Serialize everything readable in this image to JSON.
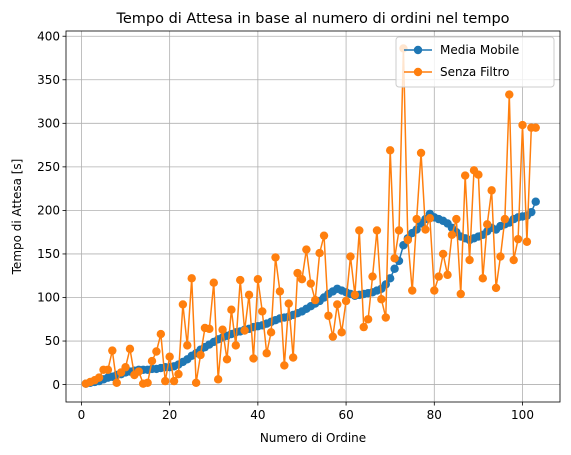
{
  "chart_data": {
    "type": "line",
    "title": "Tempo di Attesa in base al numero di ordini nel tempo",
    "xlabel": "Numero di Ordine",
    "ylabel": "Tempo di Attesa [s]",
    "xlim": [
      -3.5,
      108.5
    ],
    "ylim": [
      -20,
      406
    ],
    "x_ticks": [
      0,
      20,
      40,
      60,
      80,
      100
    ],
    "y_ticks": [
      0,
      50,
      100,
      150,
      200,
      250,
      300,
      350,
      400
    ],
    "grid": true,
    "legend_position": "top-right",
    "series": [
      {
        "name": "Media Mobile",
        "color": "#1f77b4",
        "x": [
          1,
          2,
          3,
          4,
          5,
          6,
          7,
          8,
          9,
          10,
          11,
          12,
          13,
          14,
          15,
          16,
          17,
          18,
          19,
          20,
          21,
          22,
          23,
          24,
          25,
          26,
          27,
          28,
          29,
          30,
          31,
          32,
          33,
          34,
          35,
          36,
          37,
          38,
          39,
          40,
          41,
          42,
          43,
          44,
          45,
          46,
          47,
          48,
          49,
          50,
          51,
          52,
          53,
          54,
          55,
          56,
          57,
          58,
          59,
          60,
          61,
          62,
          63,
          64,
          65,
          66,
          67,
          68,
          69,
          70,
          71,
          72,
          73,
          74,
          75,
          76,
          77,
          78,
          79,
          80,
          81,
          82,
          83,
          84,
          85,
          86,
          87,
          88,
          89,
          90,
          91,
          92,
          93,
          94,
          95,
          96,
          97,
          98,
          99,
          100,
          101,
          102,
          103
        ],
        "values": [
          1,
          2,
          3,
          4,
          6,
          8,
          9,
          11,
          12,
          14,
          15,
          16,
          17,
          17,
          17,
          18,
          18,
          19,
          20,
          20,
          21,
          23,
          26,
          29,
          33,
          36,
          40,
          43,
          46,
          49,
          52,
          54,
          56,
          58,
          60,
          61,
          63,
          64,
          66,
          67,
          68,
          70,
          72,
          74,
          76,
          77,
          78,
          80,
          82,
          84,
          87,
          90,
          93,
          96,
          100,
          104,
          107,
          110,
          108,
          106,
          104,
          102,
          103,
          104,
          105,
          106,
          108,
          110,
          115,
          122,
          133,
          142,
          160,
          168,
          174,
          178,
          185,
          190,
          196,
          192,
          190,
          188,
          185,
          180,
          175,
          170,
          168,
          166,
          168,
          170,
          172,
          176,
          180,
          178,
          182,
          184,
          186,
          190,
          192,
          193,
          194,
          198,
          210
        ]
      },
      {
        "name": "Senza Filtro",
        "color": "#ff7f0e",
        "x": [
          1,
          2,
          3,
          4,
          5,
          6,
          7,
          8,
          9,
          10,
          11,
          12,
          13,
          14,
          15,
          16,
          17,
          18,
          19,
          20,
          21,
          22,
          23,
          24,
          25,
          26,
          27,
          28,
          29,
          30,
          31,
          32,
          33,
          34,
          35,
          36,
          37,
          38,
          39,
          40,
          41,
          42,
          43,
          44,
          45,
          46,
          47,
          48,
          49,
          50,
          51,
          52,
          53,
          54,
          55,
          56,
          57,
          58,
          59,
          60,
          61,
          62,
          63,
          64,
          65,
          66,
          67,
          68,
          69,
          70,
          71,
          72,
          73,
          74,
          75,
          76,
          77,
          78,
          79,
          80,
          81,
          82,
          83,
          84,
          85,
          86,
          87,
          88,
          89,
          90,
          91,
          92,
          93,
          94,
          95,
          96,
          97,
          98,
          99,
          100,
          101,
          102,
          103
        ],
        "values": [
          1,
          3,
          5,
          8,
          17,
          17,
          39,
          2,
          14,
          20,
          41,
          11,
          15,
          1,
          2,
          27,
          38,
          58,
          4,
          32,
          4,
          12,
          92,
          45,
          122,
          2,
          34,
          65,
          64,
          117,
          6,
          63,
          29,
          86,
          45,
          120,
          62,
          103,
          30,
          121,
          84,
          36,
          60,
          146,
          107,
          22,
          93,
          31,
          128,
          121,
          155,
          116,
          97,
          151,
          171,
          79,
          55,
          92,
          60,
          96,
          147,
          103,
          177,
          66,
          75,
          124,
          177,
          98,
          77,
          269,
          145,
          177,
          386,
          166,
          108,
          190,
          266,
          178,
          191,
          108,
          124,
          150,
          126,
          172,
          190,
          104,
          240,
          143,
          246,
          241,
          122,
          184,
          223,
          111,
          147,
          190,
          333,
          143,
          167,
          298,
          164,
          295,
          295
        ]
      }
    ]
  }
}
